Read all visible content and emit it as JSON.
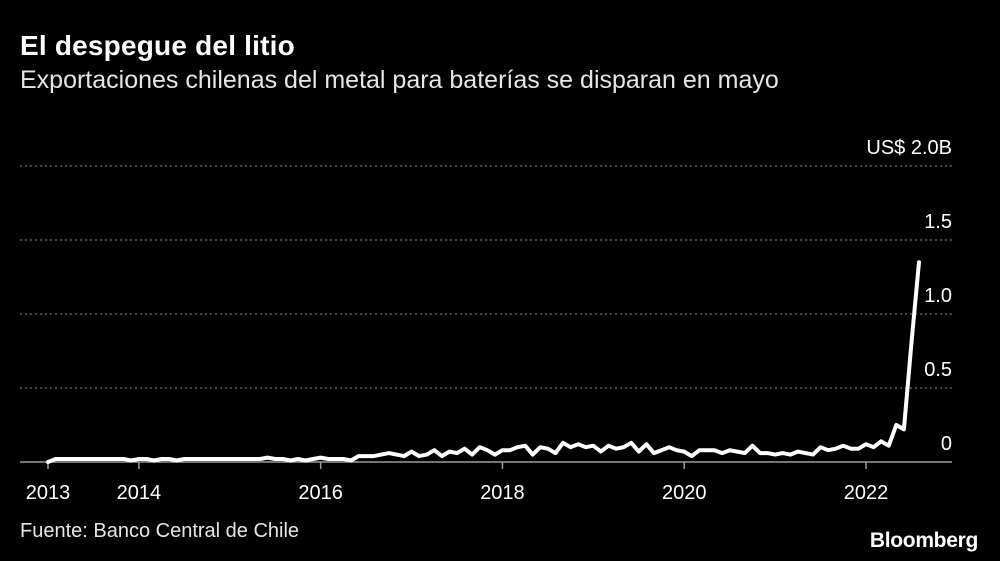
{
  "header": {
    "title": "El despegue del litio",
    "subtitle": "Exportaciones chilenas del metal para baterías se disparan en mayo"
  },
  "footer": {
    "source": "Fuente: Banco Central de Chile",
    "brand": "Bloomberg"
  },
  "colors": {
    "background": "#000000",
    "line": "#ffffff",
    "grid": "#8a8a8a",
    "text": "#ffffff"
  },
  "chart_data": {
    "type": "line",
    "title": "El despegue del litio",
    "subtitle": "Exportaciones chilenas del metal para baterías se disparan en mayo",
    "xlabel": "",
    "ylabel": "",
    "y_unit_prefix": "US$",
    "y_unit_suffix": "B",
    "xlim": [
      2013.0,
      2023.0
    ],
    "ylim": [
      0,
      2.0
    ],
    "x_ticks": [
      2013,
      2014,
      2016,
      2018,
      2020,
      2022
    ],
    "x_tick_labels": [
      "2013",
      "2014",
      "2016",
      "2018",
      "2020",
      "2022"
    ],
    "y_ticks": [
      0,
      0.5,
      1.0,
      1.5,
      2.0
    ],
    "y_tick_labels": [
      "0",
      "0.5",
      "1.0",
      "1.5",
      "US$ 2.0B"
    ],
    "grid": true,
    "legend": "none",
    "series": [
      {
        "values": [
          0.0,
          0.02,
          0.02,
          0.02,
          0.02,
          0.02,
          0.02,
          0.02,
          0.02,
          0.02,
          0.02,
          0.01,
          0.02,
          0.02,
          0.01,
          0.02,
          0.02,
          0.01,
          0.02,
          0.02,
          0.02,
          0.02,
          0.02,
          0.02,
          0.02,
          0.02,
          0.02,
          0.02,
          0.02,
          0.03,
          0.02,
          0.02,
          0.01,
          0.02,
          0.01,
          0.02,
          0.03,
          0.02,
          0.02,
          0.02,
          0.01,
          0.04,
          0.04,
          0.04,
          0.05,
          0.06,
          0.05,
          0.04,
          0.07,
          0.04,
          0.05,
          0.08,
          0.04,
          0.07,
          0.06,
          0.09,
          0.05,
          0.1,
          0.08,
          0.05,
          0.08,
          0.08,
          0.1,
          0.11,
          0.05,
          0.1,
          0.09,
          0.06,
          0.13,
          0.1,
          0.12,
          0.1,
          0.11,
          0.07,
          0.11,
          0.09,
          0.1,
          0.13,
          0.07,
          0.12,
          0.06,
          0.08,
          0.1,
          0.08,
          0.07,
          0.04,
          0.08,
          0.08,
          0.08,
          0.06,
          0.08,
          0.07,
          0.06,
          0.11,
          0.06,
          0.06,
          0.05,
          0.06,
          0.05,
          0.07,
          0.06,
          0.05,
          0.1,
          0.08,
          0.09,
          0.11,
          0.09,
          0.09,
          0.12,
          0.1,
          0.14,
          0.11,
          0.25,
          0.22,
          0.8,
          1.35
        ]
      }
    ],
    "x_start": 2013.0,
    "x_step_months": 1
  }
}
